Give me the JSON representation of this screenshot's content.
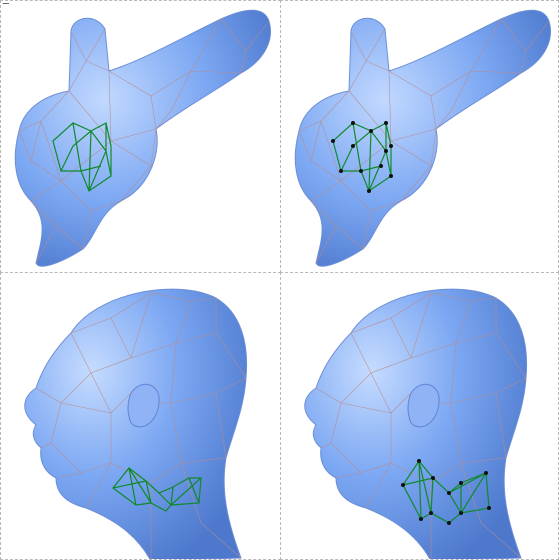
{
  "figure": {
    "panels": [
      {
        "id": "bunny-mesh",
        "subject": "bunny",
        "vertex_markers": false
      },
      {
        "id": "bunny-mesh-with-vertices",
        "subject": "bunny",
        "vertex_markers": true
      },
      {
        "id": "head-mesh",
        "subject": "head",
        "vertex_markers": false
      },
      {
        "id": "head-mesh-with-vertices",
        "subject": "head",
        "vertex_markers": true
      }
    ],
    "colors": {
      "surface": "#7aa6f2",
      "surface_highlight": "#b9d3ff",
      "surface_shadow": "#4d78cc",
      "wireframe": "#b88c8c",
      "highlight_patch": "#0f8a2b",
      "vertex_marker": "#111111",
      "panel_border": "#b9b9b9"
    }
  }
}
